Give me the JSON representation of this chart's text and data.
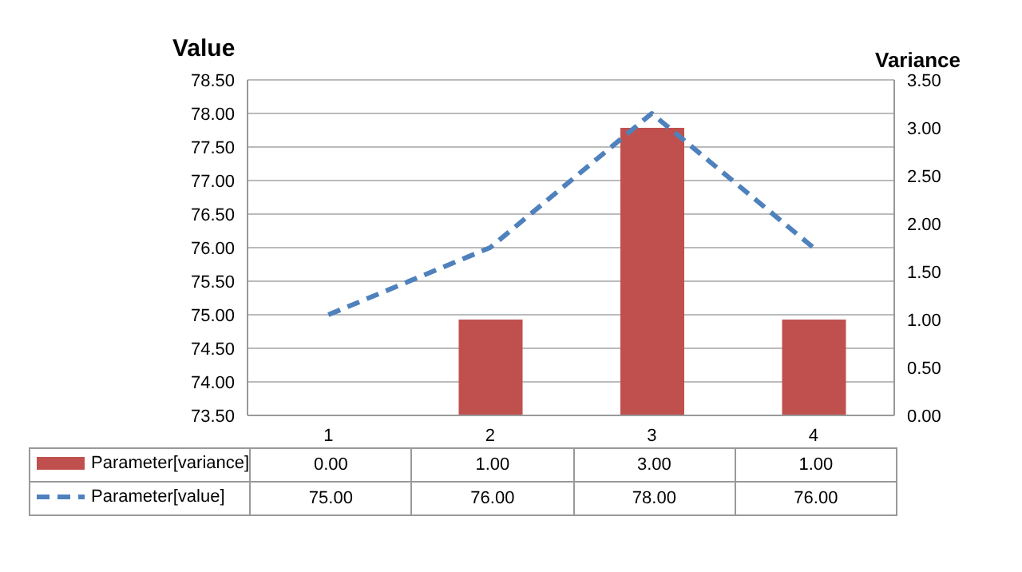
{
  "chart_data": {
    "type": "bar",
    "ylabel": "Value",
    "y2label": "Variance",
    "categories": [
      "1",
      "2",
      "3",
      "4"
    ],
    "series": [
      {
        "name": "Parameter[variance]",
        "axis": "y2",
        "color": "#c0504d",
        "values": [
          0,
          1,
          3,
          1
        ],
        "value_labels": [
          "0.00",
          "1.00",
          "3.00",
          "1.00"
        ]
      },
      {
        "name": "Parameter[value]",
        "type": "line",
        "axis": "y",
        "color": "#4f81bd",
        "line_style": "dashed",
        "marker": "none",
        "values": [
          75,
          76,
          78,
          76
        ],
        "value_labels": [
          "75.00",
          "76.00",
          "78.00",
          "76.00"
        ]
      }
    ],
    "ylim": [
      73.5,
      78.5
    ],
    "yticks": [
      {
        "value": 73.5,
        "label": "73.50"
      },
      {
        "value": 74,
        "label": "74.00"
      },
      {
        "value": 74.5,
        "label": "74.50"
      },
      {
        "value": 75,
        "label": "75.00"
      },
      {
        "value": 75.5,
        "label": "75.50"
      },
      {
        "value": 76,
        "label": "76.00"
      },
      {
        "value": 76.5,
        "label": "76.50"
      },
      {
        "value": 77,
        "label": "77.00"
      },
      {
        "value": 77.5,
        "label": "77.50"
      },
      {
        "value": 78,
        "label": "78.00"
      },
      {
        "value": 78.5,
        "label": "78.50"
      }
    ],
    "y2lim": [
      0,
      3.5
    ],
    "y2ticks": [
      {
        "value": 0,
        "label": "0.00"
      },
      {
        "value": 0.5,
        "label": "0.50"
      },
      {
        "value": 1,
        "label": "1.00"
      },
      {
        "value": 1.5,
        "label": "1.50"
      },
      {
        "value": 2,
        "label": "2.00"
      },
      {
        "value": 2.5,
        "label": "2.50"
      },
      {
        "value": 3,
        "label": "3.00"
      },
      {
        "value": 3.5,
        "label": "3.50"
      }
    ],
    "grid": "y",
    "legend": "bottom"
  }
}
